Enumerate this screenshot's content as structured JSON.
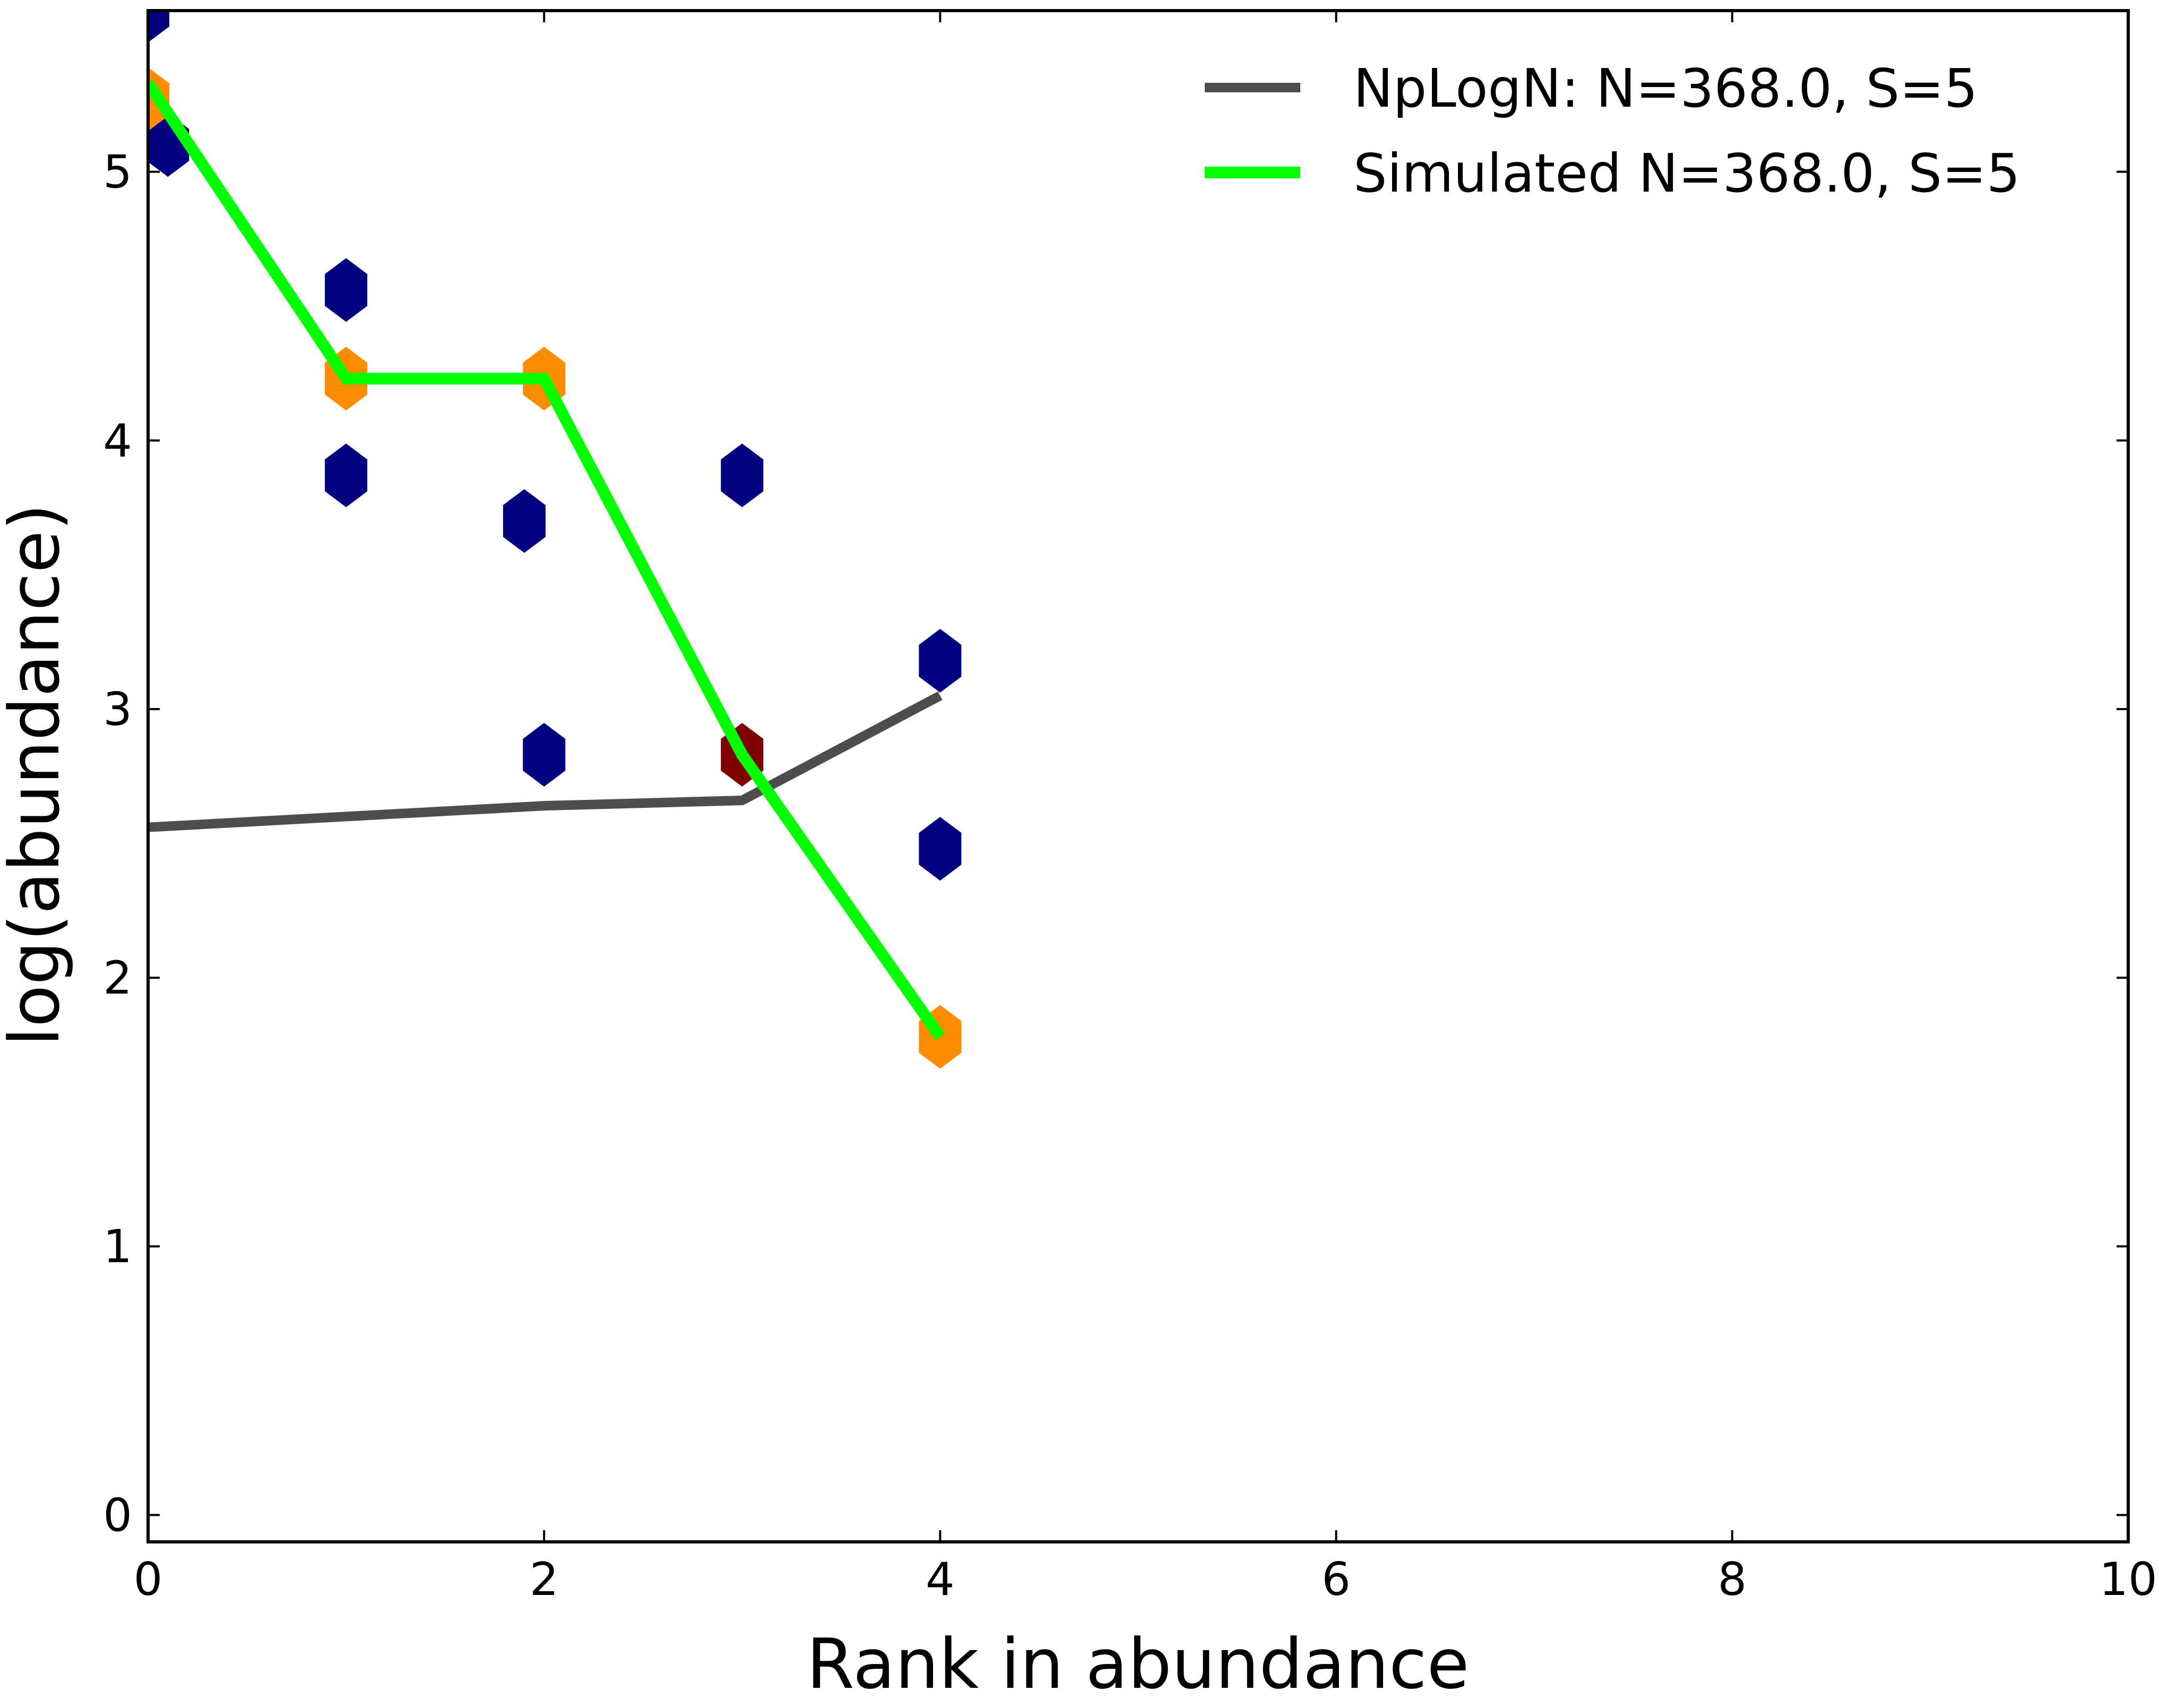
{
  "chart_data": {
    "type": "line",
    "title": "",
    "xlabel": "Rank in abundance",
    "ylabel": "log(abundance)",
    "xlim": [
      0,
      10
    ],
    "ylim": [
      -0.1,
      5.6
    ],
    "x_ticks": [
      0,
      2,
      4,
      6,
      8,
      10
    ],
    "y_ticks": [
      0,
      1,
      2,
      3,
      4,
      5
    ],
    "grid": false,
    "legend_position": "top-right",
    "series": [
      {
        "name": "NpLogN: N=368.0, S=5",
        "color": "#4d4d4d",
        "x": [
          0,
          1,
          2,
          3,
          4
        ],
        "y": [
          2.56,
          2.6,
          2.64,
          2.66,
          3.05
        ]
      },
      {
        "name": "Simulated N=368.0, S=5",
        "color": "#00ff00",
        "x": [
          0,
          1,
          2,
          3,
          4
        ],
        "y": [
          5.33,
          4.23,
          4.23,
          2.83,
          1.78
        ]
      }
    ],
    "hexbin": {
      "marker": "hexagon-icon",
      "cells": [
        {
          "x": 0.0,
          "y": 5.6,
          "color": "#000080"
        },
        {
          "x": 0.1,
          "y": 5.1,
          "color": "#000080"
        },
        {
          "x": 0.0,
          "y": 5.27,
          "color": "#ff8c00"
        },
        {
          "x": 1.0,
          "y": 4.56,
          "color": "#000080"
        },
        {
          "x": 1.0,
          "y": 4.23,
          "color": "#ff8c00"
        },
        {
          "x": 1.0,
          "y": 3.87,
          "color": "#000080"
        },
        {
          "x": 1.9,
          "y": 3.7,
          "color": "#000080"
        },
        {
          "x": 2.0,
          "y": 4.23,
          "color": "#ff8c00"
        },
        {
          "x": 2.0,
          "y": 2.83,
          "color": "#000080"
        },
        {
          "x": 3.0,
          "y": 3.87,
          "color": "#000080"
        },
        {
          "x": 3.0,
          "y": 2.83,
          "color": "#800000"
        },
        {
          "x": 4.0,
          "y": 3.18,
          "color": "#000080"
        },
        {
          "x": 4.0,
          "y": 2.48,
          "color": "#000080"
        },
        {
          "x": 4.0,
          "y": 1.78,
          "color": "#ff8c00"
        }
      ]
    }
  }
}
